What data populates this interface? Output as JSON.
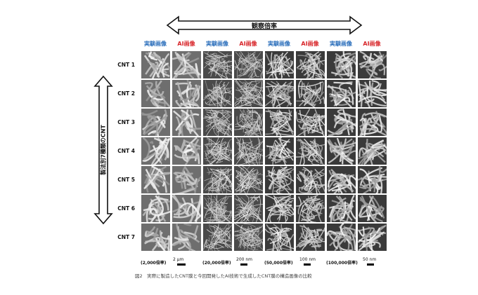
{
  "header": {
    "axis_label": "観察倍率"
  },
  "side": {
    "axis_label": "製法別7種類のCNT"
  },
  "columns": [
    {
      "label": "実験画像",
      "kind": "exp"
    },
    {
      "label": "AI画像",
      "kind": "ai"
    },
    {
      "label": "実験画像",
      "kind": "exp"
    },
    {
      "label": "AI画像",
      "kind": "ai"
    },
    {
      "label": "実験画像",
      "kind": "exp"
    },
    {
      "label": "AI画像",
      "kind": "ai"
    },
    {
      "label": "実験画像",
      "kind": "exp"
    },
    {
      "label": "AI画像",
      "kind": "ai"
    }
  ],
  "rows": [
    "CNT 1",
    "CNT 2",
    "CNT 3",
    "CNT 4",
    "CNT 5",
    "CNT 6",
    "CNT 7"
  ],
  "magnifications": [
    "(2,000倍率)",
    "(20,000倍率)",
    "(50,000倍率)",
    "(100,000倍率)"
  ],
  "scale_bars": [
    "2 μm",
    "200 nm",
    "100 nm",
    "50 nm"
  ],
  "caption": "図2　実際に製造したCNT膜と今回開発したAI技術で生成したCNT膜の構造画像の比較",
  "colors": {
    "experimental_label": "#2a6ebb",
    "ai_label": "#d8262a"
  }
}
